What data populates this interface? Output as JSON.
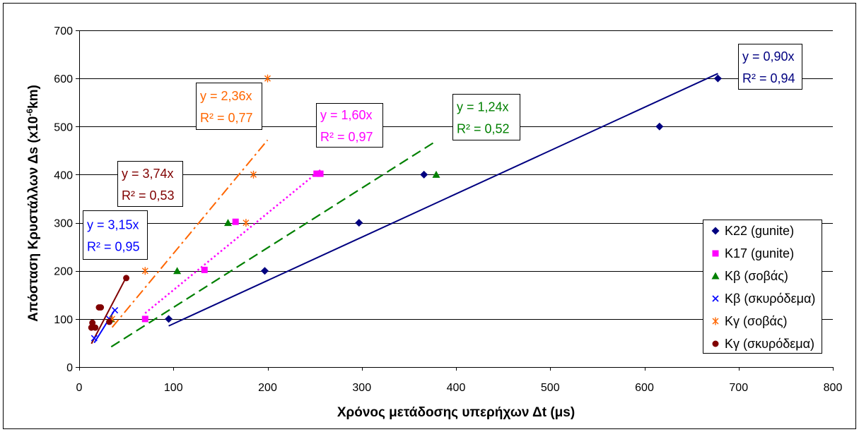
{
  "chart_data": {
    "type": "scatter",
    "xlabel": "Χρόνος μετάδοσης υπερήχων Δt (μs)",
    "ylabel": {
      "main": "Απόσταση Κρυστάλλων Δs (x10",
      "sup": "-6",
      "tail": "km)"
    },
    "xlim": [
      0,
      800
    ],
    "ylim": [
      0,
      700
    ],
    "xticks": [
      0,
      100,
      200,
      300,
      400,
      500,
      600,
      700,
      800
    ],
    "yticks": [
      0,
      100,
      200,
      300,
      400,
      500,
      600,
      700
    ],
    "grid": {
      "horizontal": true,
      "vertical": false
    },
    "legend_position": "right",
    "series": [
      {
        "name": "K22 (gunite)",
        "marker": "diamond",
        "color": "#000080",
        "points": [
          [
            95,
            100
          ],
          [
            197,
            200
          ],
          [
            297,
            300
          ],
          [
            366,
            400
          ],
          [
            616,
            500
          ],
          [
            678,
            600
          ]
        ],
        "trendline": {
          "slope": 0.9,
          "line_style": "solid",
          "equation": "y = 0,90x",
          "r_squared": "R² = 0,94"
        }
      },
      {
        "name": "K17 (gunite)",
        "marker": "square",
        "color": "#FF00FF",
        "points": [
          [
            70,
            100
          ],
          [
            133,
            202
          ],
          [
            166,
            302
          ],
          [
            252,
            402
          ],
          [
            256,
            402
          ]
        ],
        "trendline": {
          "slope": 1.6,
          "line_style": "dotted",
          "equation": "y = 1,60x",
          "r_squared": "R² = 0,97"
        }
      },
      {
        "name": "Kβ (σοβάς)",
        "marker": "triangle",
        "color": "#008000",
        "points": [
          [
            34,
            100
          ],
          [
            104,
            200
          ],
          [
            158,
            300
          ],
          [
            379,
            400
          ]
        ],
        "trendline": {
          "slope": 1.24,
          "line_style": "dashed",
          "equation": "y = 1,24x",
          "r_squared": "R² = 0,52"
        }
      },
      {
        "name": "Kβ (σκυρόδεμα)",
        "marker": "x",
        "color": "#0000FF",
        "points": [
          [
            16,
            60
          ],
          [
            32,
            100
          ],
          [
            38,
            118
          ]
        ],
        "trendline": {
          "slope": 3.15,
          "line_style": "solid",
          "equation": "y = 3,15x",
          "r_squared": "R² = 0,95"
        }
      },
      {
        "name": "Kγ (σοβάς)",
        "marker": "star",
        "color": "#FF6600",
        "points": [
          [
            35,
            100
          ],
          [
            70,
            200
          ],
          [
            177,
            300
          ],
          [
            185,
            400
          ],
          [
            200,
            600
          ]
        ],
        "trendline": {
          "slope": 2.36,
          "line_style": "dash-dot",
          "equation": "y = 2,36x",
          "r_squared": "R² = 0,77"
        }
      },
      {
        "name": "Kγ (σκυρόδεμα)",
        "marker": "circle",
        "color": "#800000",
        "points": [
          [
            13,
            82
          ],
          [
            14,
            92
          ],
          [
            17,
            82
          ],
          [
            21,
            124
          ],
          [
            23,
            124
          ],
          [
            32,
            94
          ],
          [
            50,
            185
          ]
        ],
        "trendline": {
          "slope": 3.74,
          "line_style": "solid",
          "equation": "y = 3,74x",
          "r_squared": "R² = 0,53"
        }
      }
    ]
  }
}
